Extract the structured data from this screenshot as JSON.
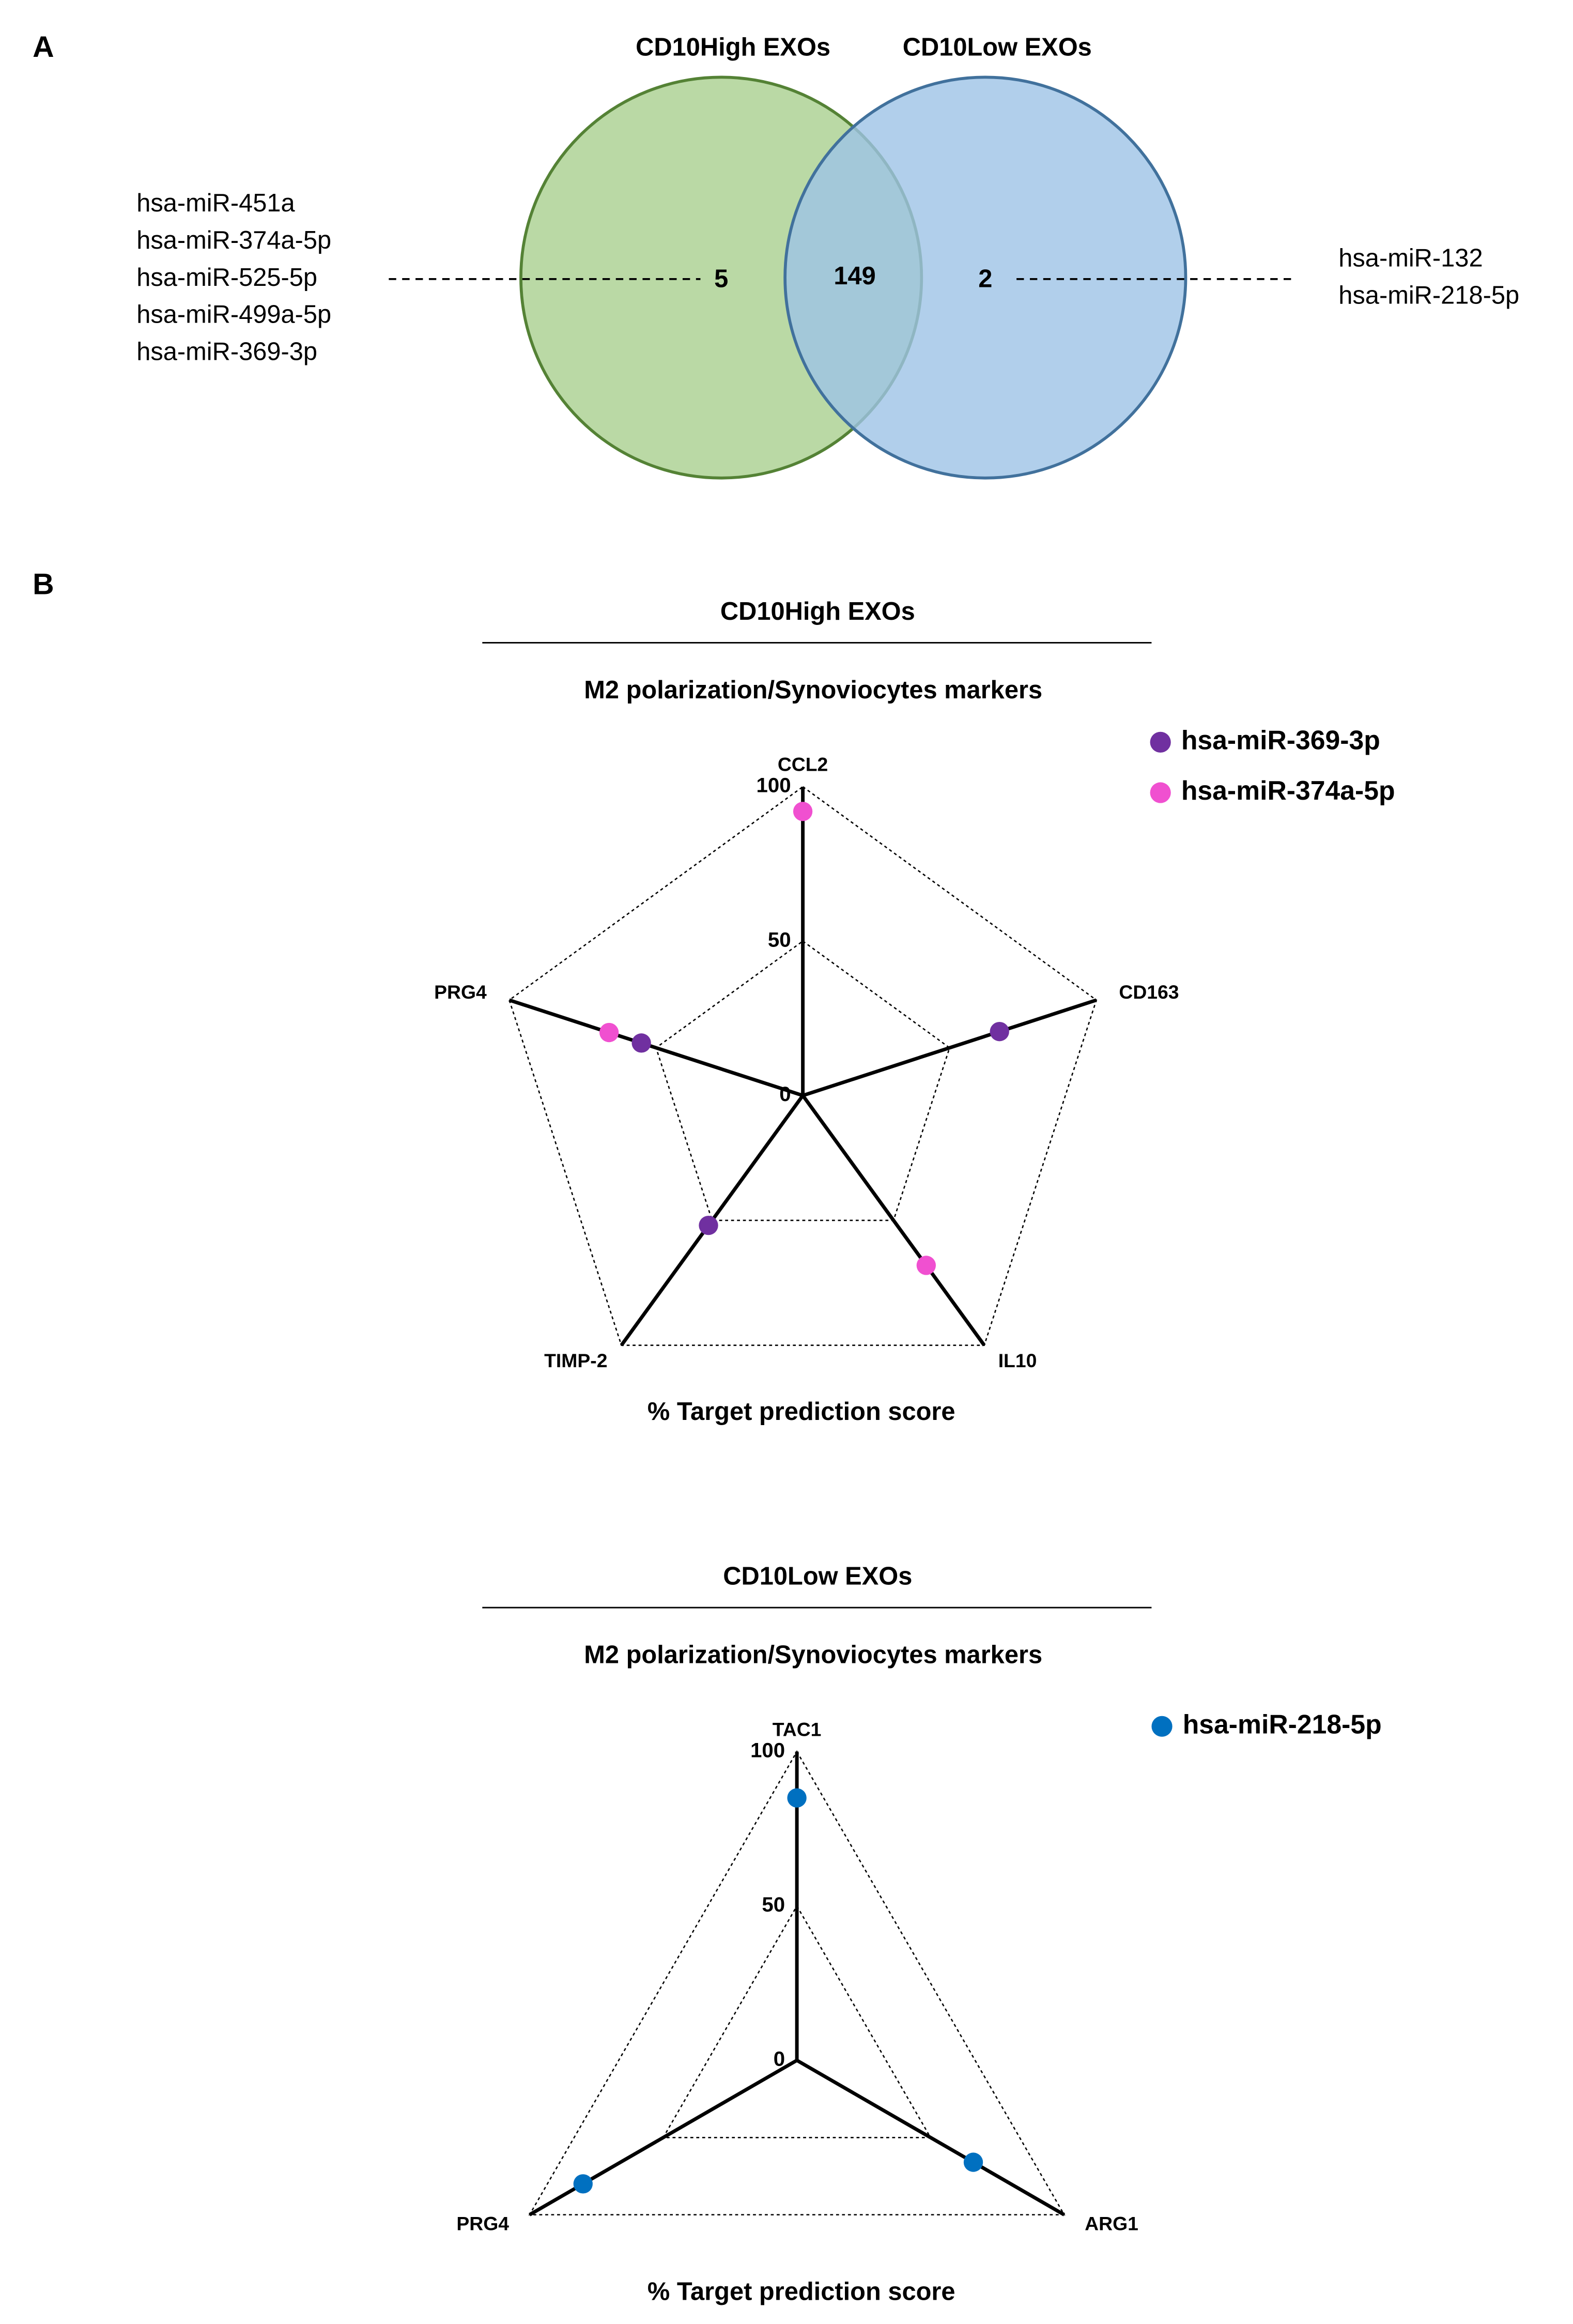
{
  "panels": {
    "a": "A",
    "b": "B"
  },
  "chart_data": [
    {
      "type": "venn",
      "sets": [
        {
          "name": "CD10High EXOs",
          "color": "#a9d08e",
          "count": 5,
          "members": [
            "hsa-miR-451a",
            "hsa-miR-374a-5p",
            "hsa-miR-525-5p",
            "hsa-miR-499a-5p",
            "hsa-miR-369-3p"
          ]
        },
        {
          "name": "CD10Low EXOs",
          "color": "#9dc3e6",
          "count": 2,
          "members": [
            "hsa-miR-132",
            "hsa-miR-218-5p"
          ]
        }
      ],
      "intersection": 149
    },
    {
      "type": "radar",
      "title": "CD10High EXOs",
      "subtitle": "M2 polarization/Synoviocytes markers",
      "axis_label": "% Target prediction score",
      "categories": [
        "CCL2",
        "CD163",
        "IL10",
        "TIMP-2",
        "PRG4"
      ],
      "rlim": [
        0,
        100
      ],
      "rticks": [
        0,
        50,
        100
      ],
      "series": [
        {
          "name": "hsa-miR-369-3p",
          "color": "#7030a0",
          "values": [
            null,
            67,
            null,
            52,
            55
          ]
        },
        {
          "name": "hsa-miR-374a-5p",
          "color": "#f050d0",
          "values": [
            92,
            null,
            68,
            null,
            66
          ]
        }
      ]
    },
    {
      "type": "radar",
      "title": "CD10Low EXOs",
      "subtitle": "M2 polarization/Synoviocytes markers",
      "axis_label": "% Target prediction score",
      "categories": [
        "TAC1",
        "ARG1",
        "PRG4"
      ],
      "rlim": [
        0,
        100
      ],
      "rticks": [
        0,
        50,
        100
      ],
      "series": [
        {
          "name": "hsa-miR-218-5p",
          "color": "#0070c0",
          "values": [
            85,
            66,
            80
          ]
        }
      ]
    }
  ]
}
